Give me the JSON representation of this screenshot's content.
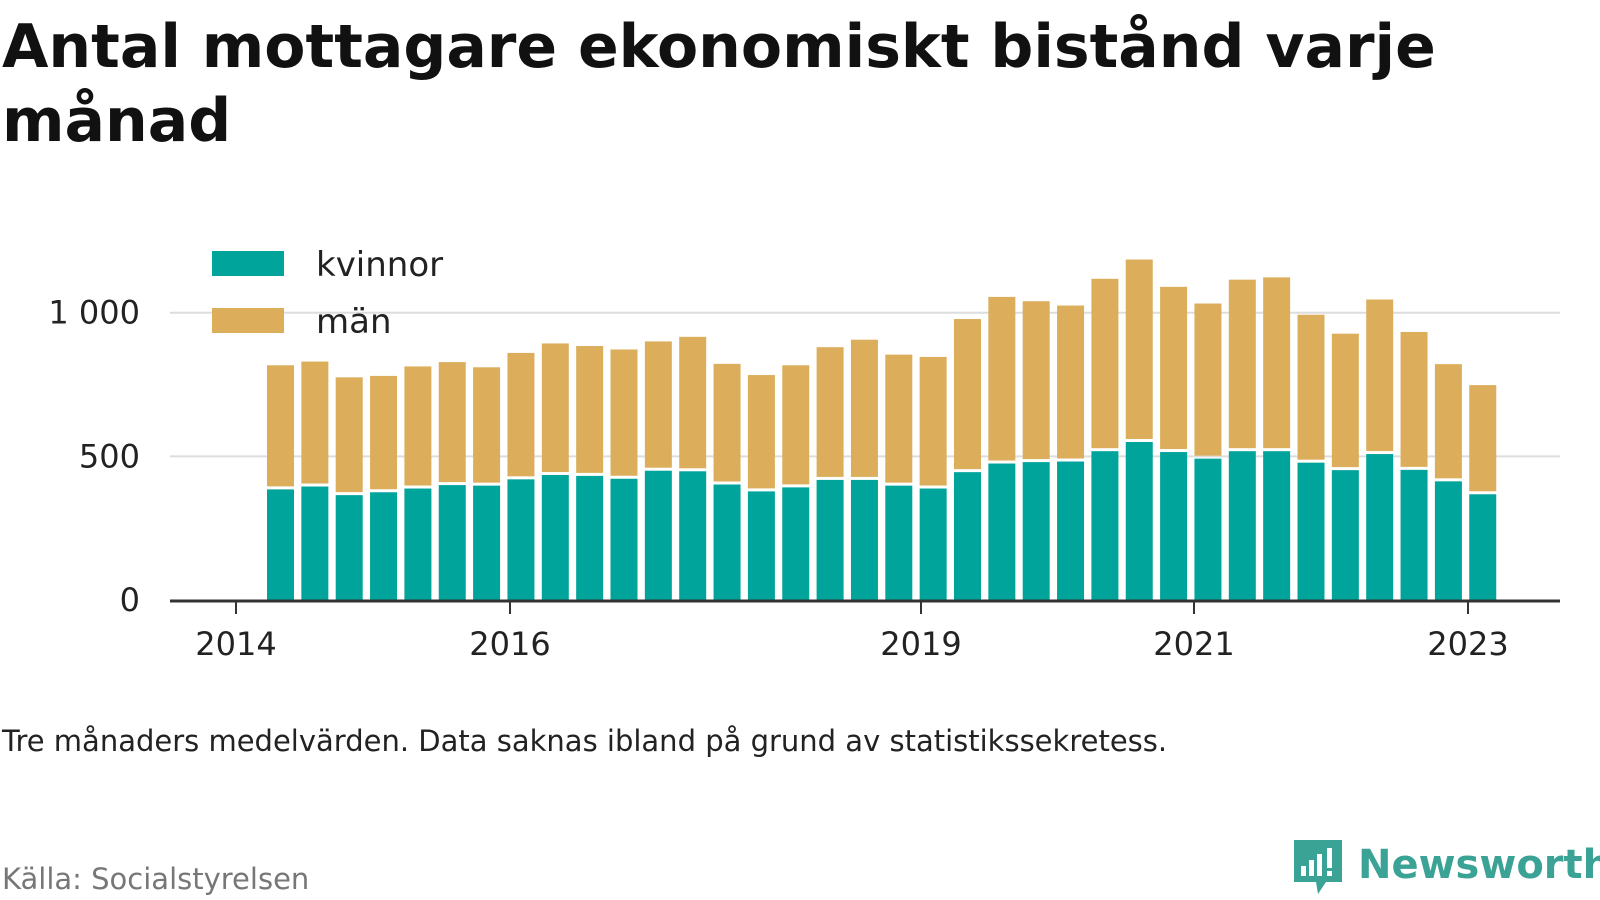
{
  "title": "Antal mottagare ekonomiskt bistånd varje månad",
  "note": "Tre månaders medelvärden. Data saknas ibland på grund av statistikssekretess.",
  "source": "Källa: Socialstyrelsen",
  "brand": "Newsworthy",
  "colors": {
    "kvinnor": "#00a49a",
    "man": "#dcae5b",
    "grid": "#dddddd",
    "axis": "#333333",
    "brand": "#3aa395"
  },
  "chart_data": {
    "type": "bar",
    "stacked": true,
    "x_ticks": [
      "2014",
      "2016",
      "2019",
      "2021",
      "2023"
    ],
    "y_ticks": [
      "0",
      "500",
      "1 000"
    ],
    "y_tick_values": [
      0,
      500,
      1000
    ],
    "ylim": [
      0,
      1200
    ],
    "grid": "horizontal",
    "legend_position": "top-left",
    "series": [
      {
        "name": "kvinnor",
        "values": [
          385,
          395,
          365,
          375,
          388,
          400,
          398,
          420,
          435,
          432,
          422,
          450,
          448,
          402,
          378,
          392,
          418,
          418,
          398,
          388,
          445,
          475,
          480,
          482,
          518,
          550,
          515,
          492,
          518,
          518,
          478,
          452,
          508,
          453,
          413,
          368
        ]
      },
      {
        "name": "män",
        "values": [
          432,
          435,
          410,
          405,
          425,
          428,
          412,
          440,
          458,
          452,
          450,
          450,
          468,
          420,
          405,
          425,
          462,
          488,
          456,
          458,
          533,
          580,
          560,
          543,
          600,
          635,
          575,
          540,
          597,
          605,
          515,
          475,
          538,
          480,
          408,
          380
        ]
      }
    ]
  }
}
